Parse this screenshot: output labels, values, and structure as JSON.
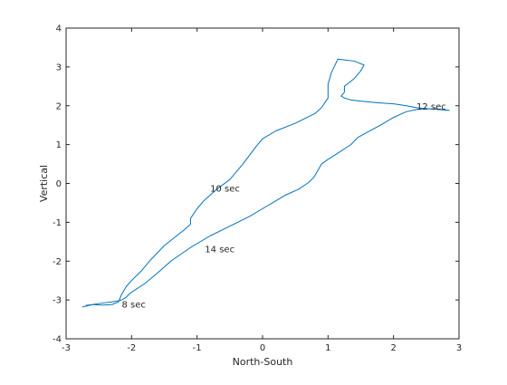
{
  "chart_data": {
    "type": "line",
    "title": "",
    "xlabel": "North-South",
    "ylabel": "Vertical",
    "xlim": [
      -3,
      3
    ],
    "ylim": [
      -4,
      4
    ],
    "xticks": [
      -3,
      -2,
      -1,
      0,
      1,
      2,
      3
    ],
    "yticks": [
      -4,
      -3,
      -2,
      -1,
      0,
      1,
      2,
      3,
      4
    ],
    "grid": false,
    "box": true,
    "series": [
      {
        "color": "#0072bd",
        "x": [
          -2.75,
          -2.6,
          -2.45,
          -2.3,
          -2.2,
          -2.15,
          -2.08,
          -2.0,
          -1.85,
          -1.7,
          -1.5,
          -1.35,
          -1.2,
          -1.1,
          -1.1,
          -1.0,
          -0.9,
          -0.8,
          -0.7,
          -0.5,
          -0.3,
          -0.1,
          0.0,
          0.2,
          0.5,
          0.8,
          0.9,
          1.0,
          1.0,
          1.05,
          1.15,
          1.25,
          1.4,
          1.55,
          1.5,
          1.4,
          1.25,
          1.25,
          1.2,
          1.25,
          1.35,
          1.5,
          1.75,
          2.0,
          2.2,
          2.35,
          2.5,
          2.65,
          2.85,
          2.7,
          2.5,
          2.35,
          2.2,
          2.0,
          1.8,
          1.6,
          1.45,
          1.35,
          1.15,
          1.0,
          0.9,
          0.85,
          0.78,
          0.7,
          0.55,
          0.35,
          0.2,
          0.0,
          -0.2,
          -0.5,
          -0.8,
          -1.1,
          -1.4,
          -1.6,
          -1.8,
          -2.0,
          -2.1,
          -2.15,
          -2.2,
          -2.3,
          -2.45,
          -2.6,
          -2.7
        ],
        "y": [
          -3.18,
          -3.12,
          -3.13,
          -3.12,
          -3.05,
          -2.85,
          -2.65,
          -2.5,
          -2.25,
          -1.95,
          -1.6,
          -1.4,
          -1.2,
          -1.05,
          -0.9,
          -0.65,
          -0.45,
          -0.3,
          -0.15,
          0.1,
          0.5,
          0.95,
          1.15,
          1.35,
          1.55,
          1.8,
          1.95,
          2.2,
          2.55,
          2.85,
          3.2,
          3.18,
          3.15,
          3.05,
          2.9,
          2.7,
          2.5,
          2.35,
          2.25,
          2.2,
          2.15,
          2.12,
          2.08,
          2.05,
          2.0,
          1.95,
          1.92,
          1.92,
          1.88,
          1.9,
          1.93,
          1.9,
          1.85,
          1.7,
          1.5,
          1.32,
          1.18,
          1.0,
          0.78,
          0.62,
          0.5,
          0.35,
          0.15,
          0.02,
          -0.15,
          -0.3,
          -0.45,
          -0.65,
          -0.85,
          -1.1,
          -1.35,
          -1.65,
          -2.0,
          -2.3,
          -2.58,
          -2.8,
          -2.95,
          -3.0,
          -3.02,
          -3.05,
          -3.08,
          -3.12,
          -3.14
        ]
      }
    ],
    "annotations": [
      {
        "text": "8 sec",
        "x": -2.15,
        "y": -3.1
      },
      {
        "text": "10 sec",
        "x": -0.8,
        "y": -0.12
      },
      {
        "text": "12 sec",
        "x": 2.35,
        "y": 2.0
      },
      {
        "text": "14 sec",
        "x": -0.88,
        "y": -1.68
      }
    ]
  }
}
